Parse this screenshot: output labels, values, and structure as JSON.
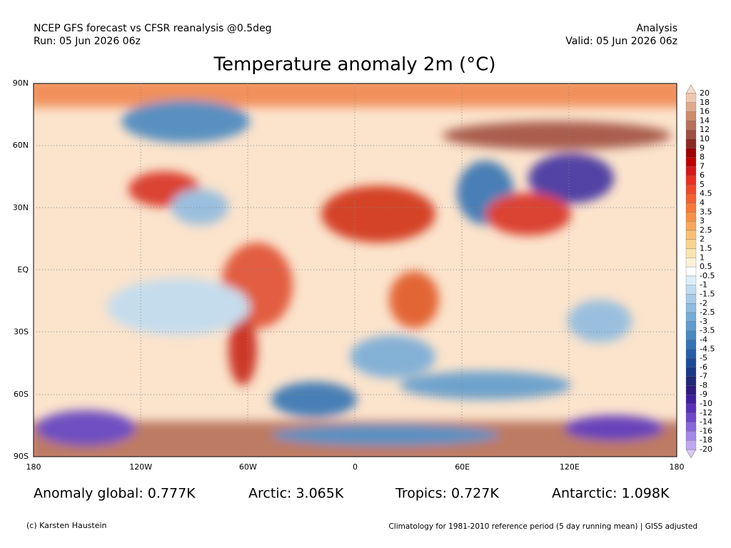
{
  "header": {
    "source": "NCEP GFS forecast vs CFSR reanalysis @0.5deg",
    "run": "Run: 05 Jun 2026 06z",
    "kind": "Analysis",
    "valid": "Valid: 05 Jun 2026 06z"
  },
  "title": "Temperature anomaly 2m (°C)",
  "map": {
    "lat_labels": [
      "90N",
      "60N",
      "30N",
      "EQ",
      "30S",
      "60S",
      "90S"
    ],
    "lon_labels": [
      "180",
      "120W",
      "60W",
      "0",
      "60E",
      "120E",
      "180"
    ]
  },
  "colorbar": {
    "levels": [
      20,
      18,
      16,
      14,
      12,
      10,
      9,
      8,
      7,
      6,
      5,
      4.5,
      4,
      3.5,
      3,
      2.5,
      2,
      1.5,
      1,
      0.5,
      -0.5,
      -1,
      -1.5,
      -2,
      -2.5,
      -3,
      -3.5,
      -4,
      -4.5,
      -5,
      -6,
      -7,
      -8,
      -9,
      -10,
      -12,
      -14,
      -16,
      -18,
      -20
    ],
    "colors": [
      "#f0c8b0",
      "#e0aa8c",
      "#cc8c6c",
      "#b87058",
      "#a05040",
      "#8c2a20",
      "#a00000",
      "#c00000",
      "#d81818",
      "#e83020",
      "#f04828",
      "#f46030",
      "#f87838",
      "#f89048",
      "#f8a858",
      "#f8c070",
      "#f8d490",
      "#f8e4b0",
      "#fcf0d8",
      "#ffffff",
      "#dceefa",
      "#c0dcf0",
      "#a8cce8",
      "#90bce0",
      "#78acd8",
      "#609ccc",
      "#4888c0",
      "#3474b4",
      "#2460a8",
      "#1c4c98",
      "#183888",
      "#202878",
      "#301c80",
      "#40209c",
      "#5830b8",
      "#7048cc",
      "#8868dc",
      "#a488e8",
      "#c0a8f0"
    ],
    "over_color": "#f8dccc",
    "under_color": "#d8c8f8"
  },
  "stats": [
    "Anomaly global: 0.777K",
    "Arctic: 3.065K",
    "Tropics: 0.727K",
    "Antarctic: 1.098K"
  ],
  "footer": {
    "credit": "(c) Karsten Haustein",
    "note": "Climatology for 1981-2010 reference period (5 day running mean) | GISS adjusted"
  }
}
